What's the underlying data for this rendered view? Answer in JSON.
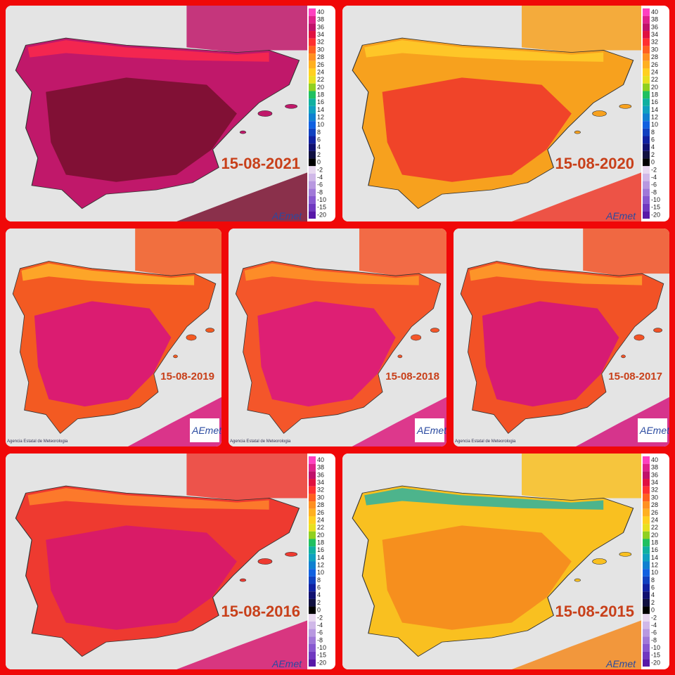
{
  "panels": [
    {
      "date": "15-08-2021",
      "colors": [
        "#c0186a",
        "#7a1030",
        "#ff2a4a"
      ]
    },
    {
      "date": "15-08-2020",
      "colors": [
        "#f7a11e",
        "#ee3a2a",
        "#ffd02a"
      ]
    },
    {
      "date": "15-08-2019",
      "colors": [
        "#f35a22",
        "#d8157a",
        "#ffb82a"
      ]
    },
    {
      "date": "15-08-2018",
      "colors": [
        "#f4562a",
        "#dc1a7c",
        "#ff9a28"
      ]
    },
    {
      "date": "15-08-2017",
      "colors": [
        "#f25226",
        "#d4157c",
        "#ffa52a"
      ]
    },
    {
      "date": "15-08-2016",
      "colors": [
        "#ee3a30",
        "#d6186e",
        "#ff8a2a"
      ]
    },
    {
      "date": "15-08-2015",
      "colors": [
        "#f9c020",
        "#f58a1e",
        "#22b0a8"
      ]
    }
  ],
  "legend": {
    "labels": [
      "40",
      "38",
      "36",
      "34",
      "32",
      "30",
      "28",
      "26",
      "24",
      "22",
      "20",
      "18",
      "16",
      "14",
      "12",
      "10",
      "8",
      "6",
      "4",
      "2",
      "0",
      "-2",
      "-4",
      "-6",
      "-8",
      "-10",
      "-15",
      "-20"
    ],
    "colors": [
      "#ff40c0",
      "#e0208a",
      "#c0106a",
      "#e01040",
      "#ff3030",
      "#ff6020",
      "#ff9020",
      "#ffb020",
      "#ffd020",
      "#e8e020",
      "#90d020",
      "#20c060",
      "#10b0a0",
      "#10a0c0",
      "#1080d0",
      "#1060e0",
      "#1040c0",
      "#1020a0",
      "#101070",
      "#101040",
      "#000000",
      "#e8d8f0",
      "#d0b8e8",
      "#b898e0",
      "#a078d8",
      "#8858d0",
      "#7038c0",
      "#5818a8"
    ]
  },
  "logo": "AEmet",
  "agency": "Agencia Estatal de Meteorologia"
}
